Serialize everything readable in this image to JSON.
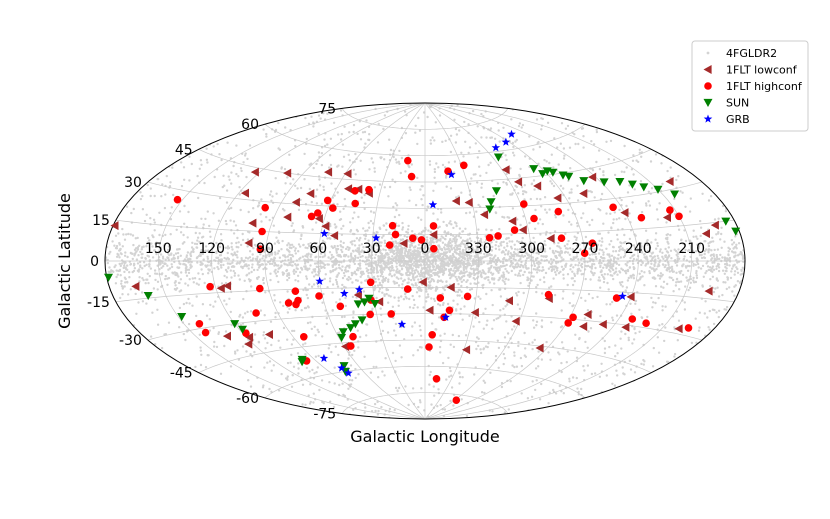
{
  "chart_data": {
    "type": "scatter",
    "projection": "aitoff",
    "xlabel": "Galactic Longitude",
    "ylabel": "Galactic Latitude",
    "lon_ticks": [
      {
        "lon": 150,
        "label": "150"
      },
      {
        "lon": 120,
        "label": "120"
      },
      {
        "lon": 90,
        "label": "90"
      },
      {
        "lon": 60,
        "label": "60"
      },
      {
        "lon": 30,
        "label": "30"
      },
      {
        "lon": 0,
        "label": "0"
      },
      {
        "lon": -30,
        "label": "330"
      },
      {
        "lon": -60,
        "label": "300"
      },
      {
        "lon": -90,
        "label": "270"
      },
      {
        "lon": -120,
        "label": "240"
      },
      {
        "lon": -150,
        "label": "210"
      }
    ],
    "lat_ticks": [
      {
        "lat": 75,
        "label": "75"
      },
      {
        "lat": 60,
        "label": "60"
      },
      {
        "lat": 45,
        "label": "45"
      },
      {
        "lat": 30,
        "label": "30"
      },
      {
        "lat": 15,
        "label": "15"
      },
      {
        "lat": 0,
        "label": "0"
      },
      {
        "lat": -15,
        "label": "-15"
      },
      {
        "lat": -30,
        "label": "-30"
      },
      {
        "lat": -45,
        "label": "-45"
      },
      {
        "lat": -60,
        "label": "-60"
      },
      {
        "lat": -75,
        "label": "-75"
      }
    ],
    "grid": true,
    "legend_position": "top-right",
    "series": [
      {
        "name": "4FGLDR2",
        "marker": "dot",
        "color": "#d3d3d3",
        "count": 5064,
        "note_points": "background catalog sources, concentrated along the Galactic plane"
      },
      {
        "name": "1FLT lowconf",
        "marker": "triangle-left",
        "color": "#a52a2a",
        "points": [
          [
            123,
            43
          ],
          [
            101,
            45
          ],
          [
            116,
            33
          ],
          [
            73,
            48
          ],
          [
            75,
            36
          ],
          [
            81,
            31
          ],
          [
            82,
            23
          ],
          [
            101,
            19
          ],
          [
            100,
            9
          ],
          [
            58,
            48
          ],
          [
            52,
            40
          ],
          [
            37,
            38
          ],
          [
            45,
            40
          ],
          [
            63,
            23
          ],
          [
            58,
            19
          ],
          [
            52,
            14
          ],
          [
            12,
            10
          ],
          [
            -20,
            34
          ],
          [
            -28,
            33
          ],
          [
            -36,
            26
          ],
          [
            -52,
            22
          ],
          [
            -57,
            17
          ],
          [
            -72,
            12
          ],
          [
            -5,
            15
          ],
          [
            -63,
            50
          ],
          [
            -66,
            43
          ],
          [
            -77,
            40
          ],
          [
            -85,
            33
          ],
          [
            -103,
            34
          ],
          [
            -118,
            41
          ],
          [
            -162,
            33
          ],
          [
            -168,
            14
          ],
          [
            -120,
            23
          ],
          [
            -161,
            11
          ],
          [
            -143,
            19
          ],
          [
            179,
            13
          ],
          [
            165,
            -10
          ],
          [
            113,
            -12
          ],
          [
            117,
            -13
          ],
          [
            39,
            -19
          ],
          [
            27,
            -23
          ],
          [
            1,
            -12
          ],
          [
            -15,
            -15
          ],
          [
            -50,
            -22
          ],
          [
            -73,
            -20
          ],
          [
            -163,
            -12
          ],
          [
            -120,
            -17
          ],
          [
            -100,
            -27
          ],
          [
            -102,
            -33
          ],
          [
            -113,
            -31
          ],
          [
            -128,
            -31
          ],
          [
            -160,
            -28
          ],
          [
            -58,
            -33
          ],
          [
            -31,
            -29
          ],
          [
            -3,
            -28
          ],
          [
            -32,
            -50
          ],
          [
            -85,
            -46
          ],
          [
            59,
            -47
          ],
          [
            118,
            -37
          ],
          [
            131,
            -35
          ],
          [
            123,
            -40
          ],
          [
            104,
            -37
          ]
        ]
      },
      {
        "name": "1FLT highconf",
        "marker": "circle",
        "color": "#ff0000",
        "points": [
          [
            153,
            26
          ],
          [
            98,
            27
          ],
          [
            94,
            15
          ],
          [
            93,
            6
          ],
          [
            57,
            29
          ],
          [
            62,
            33
          ],
          [
            65,
            26
          ],
          [
            68,
            24
          ],
          [
            44,
            32
          ],
          [
            38,
            40
          ],
          [
            47,
            39
          ],
          [
            15,
            57
          ],
          [
            10,
            48
          ],
          [
            -18,
            51
          ],
          [
            -32,
            54
          ],
          [
            -5,
            20
          ],
          [
            -62,
            31
          ],
          [
            -65,
            23
          ],
          [
            -78,
            12
          ],
          [
            -95,
            9
          ],
          [
            -81,
            26
          ],
          [
            -52,
            17
          ],
          [
            -42,
            14
          ],
          [
            -37,
            13
          ],
          [
            19,
            20
          ],
          [
            7,
            13
          ],
          [
            2,
            12
          ],
          [
            17,
            15
          ],
          [
            20,
            9
          ],
          [
            -5,
            7
          ],
          [
            -115,
            26
          ],
          [
            -128,
            20
          ],
          [
            -147,
            22
          ],
          [
            -150,
            19
          ],
          [
            -90,
            4
          ],
          [
            123,
            -12
          ],
          [
            95,
            -14
          ],
          [
            75,
            -16
          ],
          [
            75,
            -21
          ],
          [
            81,
            -22
          ],
          [
            77,
            -23
          ],
          [
            62,
            -19
          ],
          [
            51,
            -25
          ],
          [
            32,
            -22
          ],
          [
            34,
            -30
          ],
          [
            21,
            -30
          ],
          [
            10,
            -16
          ],
          [
            31,
            -12
          ],
          [
            -9,
            -21
          ],
          [
            -12,
            -32
          ],
          [
            -15,
            -28
          ],
          [
            -3,
            -49
          ],
          [
            -5,
            -42
          ],
          [
            -13,
            -67
          ],
          [
            -72,
            -18
          ],
          [
            -112,
            -18
          ],
          [
            -128,
            -27
          ],
          [
            -138,
            -28
          ],
          [
            -165,
            -27
          ],
          [
            -92,
            -29
          ],
          [
            -91,
            -32
          ],
          [
            -63,
            -78
          ],
          [
            -25,
            -20
          ],
          [
            142,
            -32
          ],
          [
            141,
            -28
          ],
          [
            118,
            -35
          ],
          [
            103,
            -26
          ],
          [
            97,
            -52
          ],
          [
            83,
            -40
          ],
          [
            50,
            -42
          ],
          [
            55,
            -47
          ]
        ]
      },
      {
        "name": "SUN",
        "marker": "triangle-down",
        "color": "#008000",
        "points": [
          [
            -84,
            49
          ],
          [
            -87,
            46
          ],
          [
            -92,
            47
          ],
          [
            -95,
            46
          ],
          [
            -100,
            44
          ],
          [
            -103,
            43
          ],
          [
            -110,
            40
          ],
          [
            -122,
            38
          ],
          [
            -132,
            37
          ],
          [
            -138,
            35
          ],
          [
            -143,
            33
          ],
          [
            -150,
            31
          ],
          [
            -157,
            28
          ],
          [
            -175,
            15
          ],
          [
            -178,
            11
          ],
          [
            -65,
            57
          ],
          [
            -48,
            39
          ],
          [
            -42,
            33
          ],
          [
            -40,
            29
          ],
          [
            179,
            -6
          ],
          [
            160,
            -14
          ],
          [
            148,
            -24
          ],
          [
            120,
            -30
          ],
          [
            118,
            -33
          ],
          [
            40,
            -24
          ],
          [
            36,
            -23
          ],
          [
            33,
            -21
          ],
          [
            30,
            -24
          ],
          [
            40,
            -33
          ],
          [
            45,
            -35
          ],
          [
            49,
            -37
          ],
          [
            55,
            -39
          ],
          [
            58,
            -42
          ],
          [
            99,
            -51
          ],
          [
            101,
            -52
          ],
          [
            72,
            -57
          ],
          [
            76,
            -60
          ]
        ]
      },
      {
        "name": "GRB",
        "marker": "star",
        "color": "#0000ff",
        "points": [
          [
            -71,
            62
          ],
          [
            -87,
            64
          ],
          [
            -105,
            67
          ],
          [
            -20,
            49
          ],
          [
            -5,
            32
          ],
          [
            58,
            15
          ],
          [
            28,
            13
          ],
          [
            60,
            -11
          ],
          [
            47,
            -18
          ],
          [
            38,
            -16
          ],
          [
            15,
            -36
          ],
          [
            -13,
            -32
          ],
          [
            -115,
            -17
          ],
          [
            82,
            -52
          ],
          [
            76,
            -58
          ],
          [
            75,
            -61
          ]
        ]
      }
    ]
  }
}
